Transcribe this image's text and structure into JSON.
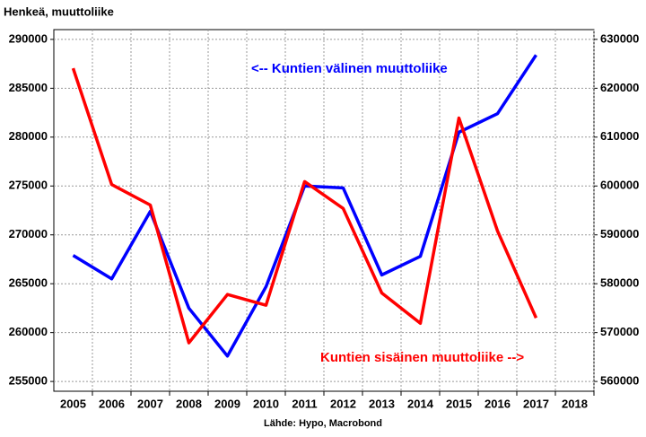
{
  "chart_data": {
    "type": "line",
    "title": "Henkeä, muuttoliike",
    "source": "Lähde: Hypo, Macrobond",
    "categories": [
      "2005",
      "2006",
      "2007",
      "2008",
      "2009",
      "2010",
      "2011",
      "2012",
      "2013",
      "2014",
      "2015",
      "2016",
      "2017",
      "2018"
    ],
    "series": [
      {
        "name": "<-- Kuntien välinen muuttoliike",
        "color": "#0000ff",
        "axis": "y",
        "values": [
          267900,
          265500,
          272400,
          262500,
          257600,
          264700,
          275000,
          274800,
          265900,
          267800,
          280500,
          282400,
          288400,
          null
        ]
      },
      {
        "name": "Kuntien sisäinen muuttoliike -->",
        "color": "#ff0000",
        "axis": "y2",
        "values": [
          624100,
          600300,
          596100,
          567900,
          577800,
          575600,
          600900,
          595400,
          578100,
          571900,
          613900,
          590800,
          573000,
          null
        ]
      }
    ],
    "ylim": [
      254000,
      291000
    ],
    "yticks": [
      255000,
      260000,
      265000,
      270000,
      275000,
      280000,
      285000,
      290000
    ],
    "y2lim": [
      558000,
      632000
    ],
    "y2ticks": [
      560000,
      570000,
      580000,
      590000,
      600000,
      610000,
      620000,
      630000
    ],
    "grid": true
  }
}
